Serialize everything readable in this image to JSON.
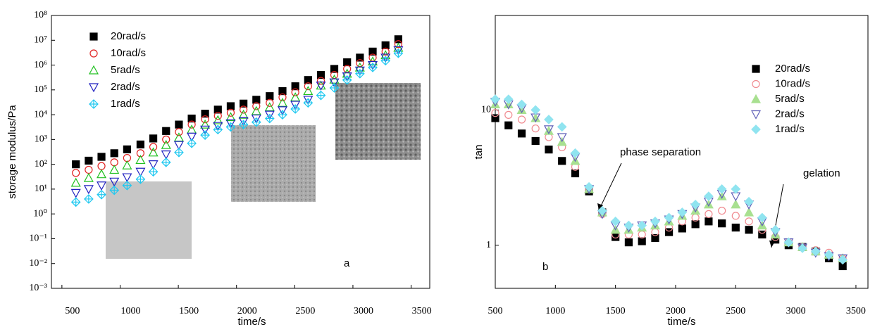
{
  "chart_data": [
    {
      "type": "scatter",
      "x_label": "time/s",
      "y_label": "storage modulus/Pa",
      "annotation": "a",
      "log_y": true,
      "legend": "upper left",
      "xlim": [
        410,
        3660
      ],
      "xticks": [
        500,
        1000,
        1500,
        2000,
        2500,
        3000,
        3500
      ],
      "ylim": [
        0.001,
        100000000
      ],
      "yticks": [
        {
          "value": 0.001,
          "label": "10⁻³"
        },
        {
          "value": 0.01,
          "label": "10⁻²"
        },
        {
          "value": 0.1,
          "label": "10⁻¹"
        },
        {
          "value": 1,
          "label": "10⁰"
        },
        {
          "value": 10,
          "label": "10¹"
        },
        {
          "value": 100,
          "label": "10²"
        },
        {
          "value": 1000,
          "label": "10³"
        },
        {
          "value": 10000,
          "label": "10⁴"
        },
        {
          "value": 100000,
          "label": "10⁵"
        },
        {
          "value": 1000000,
          "label": "10⁶"
        },
        {
          "value": 10000000,
          "label": "10⁷"
        },
        {
          "value": 100000000,
          "label": "10⁸"
        }
      ],
      "x": [
        620,
        730,
        840,
        950,
        1060,
        1175,
        1285,
        1395,
        1505,
        1615,
        1730,
        1840,
        1950,
        2060,
        2170,
        2285,
        2395,
        2505,
        2615,
        2725,
        2840,
        2950,
        3060,
        3170,
        3280,
        3390
      ],
      "series": [
        {
          "name": "20rad/s",
          "color": "#000000",
          "marker": "square",
          "values": [
            100,
            140,
            200,
            280,
            400,
            630,
            1100,
            2200,
            4000,
            7000,
            11000,
            16000,
            22000,
            28000,
            40000,
            56000,
            89000,
            140000,
            250000,
            400000,
            700000,
            1300000,
            2000000,
            3500000,
            6300000,
            11000000
          ]
        },
        {
          "name": "10rad/s",
          "color": "#e02020",
          "marker": "circle",
          "values": [
            45,
            60,
            85,
            120,
            180,
            280,
            500,
            1000,
            2000,
            4000,
            6500,
            9000,
            12000,
            16000,
            22000,
            30000,
            50000,
            80000,
            140000,
            230000,
            400000,
            700000,
            1200000,
            2000000,
            3500000,
            7000000
          ]
        },
        {
          "name": "5rad/s",
          "color": "#20c020",
          "marker": "triangle",
          "values": [
            18,
            28,
            40,
            60,
            90,
            150,
            300,
            600,
            1200,
            2500,
            4000,
            6000,
            8000,
            10000,
            14000,
            20000,
            30000,
            50000,
            90000,
            150000,
            260000,
            450000,
            800000,
            1400000,
            2500000,
            5000000
          ]
        },
        {
          "name": "2rad/s",
          "color": "#2020c0",
          "marker": "triangle-down",
          "values": [
            7,
            10,
            14,
            20,
            30,
            50,
            100,
            250,
            600,
            1300,
            2500,
            3500,
            4500,
            5500,
            7000,
            10000,
            15000,
            25000,
            40000,
            150000,
            200000,
            350000,
            600000,
            1000000,
            2000000,
            4000000
          ]
        },
        {
          "name": "1rad/s",
          "color": "#20c8f0",
          "marker": "diamond",
          "values": [
            3,
            4,
            6,
            9,
            14,
            25,
            50,
            120,
            300,
            700,
            1500,
            2500,
            3200,
            4000,
            5000,
            7000,
            10000,
            17000,
            30000,
            60000,
            120000,
            250000,
            450000,
            800000,
            1500000,
            3000000
          ]
        }
      ]
    },
    {
      "type": "scatter",
      "x_label": "time/s",
      "y_label": "tan",
      "annotation": "b",
      "annotations": [
        "phase separation",
        "gelation"
      ],
      "log_y": true,
      "legend": "upper right",
      "xlim": [
        500,
        3600
      ],
      "xticks": [
        500,
        1000,
        1500,
        2000,
        2500,
        3000,
        3500
      ],
      "ylim": [
        0.48,
        50
      ],
      "yticks": [
        1,
        10
      ],
      "x": [
        500,
        610,
        720,
        835,
        945,
        1055,
        1165,
        1280,
        1390,
        1500,
        1610,
        1720,
        1830,
        1945,
        2055,
        2165,
        2275,
        2385,
        2500,
        2610,
        2720,
        2830,
        2940,
        3055,
        3165,
        3275,
        3390
      ],
      "series": [
        {
          "name": "20rad/s",
          "color": "#000000",
          "marker": "square",
          "values": [
            8.7,
            7.7,
            6.7,
            5.9,
            5.1,
            4.2,
            3.4,
            2.5,
            1.75,
            1.15,
            1.05,
            1.07,
            1.13,
            1.25,
            1.33,
            1.43,
            1.5,
            1.45,
            1.35,
            1.3,
            1.2,
            1.1,
            1.0,
            0.97,
            0.9,
            0.8,
            0.7
          ]
        },
        {
          "name": "10rad/s",
          "color": "#f08a90",
          "marker": "circle",
          "values": [
            9.5,
            9.2,
            8.5,
            7.3,
            6.3,
            5.3,
            3.8,
            2.6,
            1.7,
            1.2,
            1.2,
            1.2,
            1.25,
            1.35,
            1.5,
            1.6,
            1.7,
            1.8,
            1.65,
            1.5,
            1.3,
            1.15,
            1.05,
            0.97,
            0.92,
            0.88,
            0.8
          ]
        },
        {
          "name": "5rad/s",
          "color": "#a8e090",
          "marker": "triangle",
          "values": [
            11,
            11,
            10,
            8.7,
            7,
            5.8,
            4.2,
            2.6,
            1.75,
            1.3,
            1.3,
            1.35,
            1.4,
            1.5,
            1.65,
            1.8,
            2.0,
            2.3,
            2.0,
            1.75,
            1.4,
            1.2,
            1.05,
            0.97,
            0.9,
            0.85,
            0.8
          ]
        },
        {
          "name": "2rad/s",
          "color": "#6060b8",
          "marker": "triangle-down",
          "values": [
            11.5,
            11,
            10.3,
            8.8,
            7.2,
            6.3,
            4.5,
            2.6,
            1.7,
            1.4,
            1.35,
            1.4,
            1.45,
            1.55,
            1.7,
            1.9,
            2.1,
            2.4,
            2.3,
            2.0,
            1.5,
            1.25,
            1.05,
            0.96,
            0.88,
            0.83,
            0.8
          ]
        },
        {
          "name": "1rad/s",
          "color": "#90e4f0",
          "marker": "diamond",
          "values": [
            12,
            12,
            11,
            10,
            8.5,
            7.5,
            4.8,
            2.7,
            1.8,
            1.5,
            1.4,
            1.4,
            1.5,
            1.6,
            1.75,
            2.0,
            2.3,
            2.6,
            2.6,
            2.1,
            1.6,
            1.3,
            1.05,
            0.95,
            0.9,
            0.85,
            0.78
          ]
        }
      ]
    }
  ]
}
